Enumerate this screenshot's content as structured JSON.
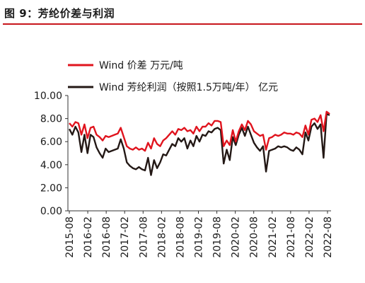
{
  "header": {
    "title": "图 9：芳纶价差与利润"
  },
  "colors": {
    "accent": "#c8161d",
    "series1": "#e0141e",
    "series2": "#231815"
  },
  "chart_data": {
    "type": "line",
    "xlabel": "",
    "ylabel": "",
    "ylim": [
      0,
      10
    ],
    "yticks": [
      "0.00",
      "2.00",
      "4.00",
      "6.00",
      "8.00",
      "10.00"
    ],
    "xticks": [
      "2015-08",
      "2016-02",
      "2016-08",
      "2017-02",
      "2017-08",
      "2018-02",
      "2018-08",
      "2019-02",
      "2019-08",
      "2020-02",
      "2020-08",
      "2021-02",
      "2021-08",
      "2022-02",
      "2022-08"
    ],
    "grid": false,
    "legend": "top-left",
    "series": [
      {
        "name": "Wind 价差 万元/吨",
        "color": "#e0141e",
        "values": [
          7.6,
          7.3,
          7.7,
          7.6,
          6.6,
          7.5,
          6.3,
          7.2,
          7.3,
          6.6,
          6.4,
          6.1,
          6.5,
          6.4,
          6.5,
          6.6,
          6.7,
          7.2,
          6.4,
          5.6,
          5.4,
          5.3,
          5.5,
          5.3,
          5.4,
          5.2,
          5.9,
          5.4,
          6.3,
          5.8,
          5.6,
          6.1,
          6.3,
          6.6,
          6.9,
          6.6,
          7.1,
          7.0,
          7.2,
          6.9,
          7.0,
          6.7,
          7.3,
          6.9,
          7.3,
          7.3,
          7.6,
          7.4,
          7.8,
          7.8,
          7.7,
          5.6,
          6.1,
          5.7,
          7.0,
          6.0,
          6.9,
          7.5,
          7.0,
          7.8,
          7.5,
          6.9,
          6.7,
          6.5,
          6.6,
          5.3,
          6.3,
          6.4,
          6.6,
          6.5,
          6.6,
          6.8,
          6.7,
          6.7,
          6.6,
          6.8,
          6.7,
          6.4,
          7.4,
          6.6,
          7.9,
          8.0,
          7.7,
          8.3,
          6.9,
          8.6,
          8.4
        ]
      },
      {
        "name": "Wind 芳纶利润（按照1.5万吨/年） 亿元",
        "color": "#231815",
        "values": [
          7.1,
          6.6,
          7.3,
          6.8,
          5.1,
          6.6,
          5.0,
          6.6,
          6.4,
          5.5,
          5.0,
          4.6,
          5.4,
          5.1,
          5.2,
          5.3,
          5.4,
          6.2,
          5.4,
          4.2,
          3.9,
          3.7,
          3.6,
          3.8,
          3.6,
          3.5,
          4.6,
          3.1,
          4.4,
          3.7,
          4.2,
          4.9,
          4.8,
          5.3,
          5.8,
          5.6,
          6.3,
          6.0,
          6.3,
          5.4,
          6.1,
          5.6,
          6.5,
          6.0,
          6.6,
          6.5,
          6.9,
          6.8,
          7.1,
          7.2,
          7.0,
          4.1,
          5.3,
          4.4,
          6.4,
          5.7,
          6.6,
          7.2,
          6.5,
          7.3,
          6.6,
          5.9,
          5.5,
          5.2,
          5.6,
          3.4,
          5.2,
          5.3,
          5.4,
          5.6,
          5.5,
          5.6,
          5.5,
          5.3,
          5.2,
          5.5,
          5.3,
          4.9,
          6.8,
          6.1,
          7.3,
          7.6,
          7.1,
          7.5,
          4.6,
          8.4,
          8.3
        ]
      }
    ]
  }
}
